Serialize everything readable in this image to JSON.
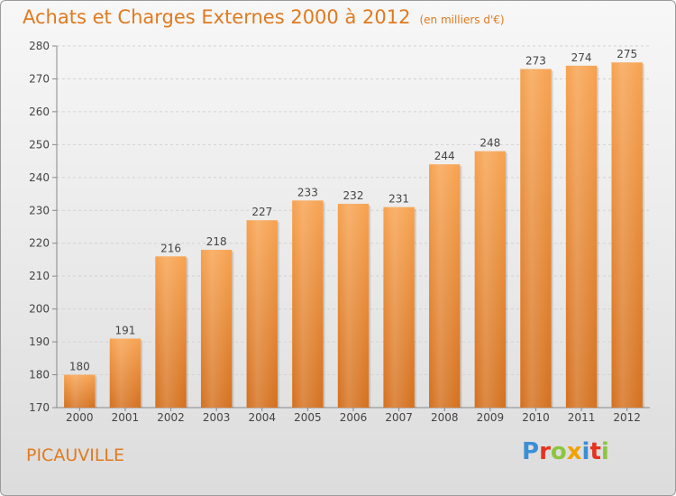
{
  "title": {
    "main": "Achats et Charges Externes 2000 à 2012",
    "unit": "(en milliers d'€)"
  },
  "commune": "PICAUVILLE",
  "logo": {
    "text": "Proxiti",
    "colors": [
      "#3a8fd6",
      "#e6321e",
      "#8cc63f",
      "#f4a000",
      "#3a8fd6",
      "#e6321e",
      "#8cc63f"
    ]
  },
  "colors": {
    "bar_light": "#f7a24f",
    "bar_dark": "#d4701e",
    "title": "#e07a1e"
  },
  "chart_data": {
    "type": "bar",
    "categories": [
      "2000",
      "2001",
      "2002",
      "2003",
      "2004",
      "2005",
      "2006",
      "2007",
      "2008",
      "2009",
      "2010",
      "2011",
      "2012"
    ],
    "values": [
      180,
      191,
      216,
      218,
      227,
      233,
      232,
      231,
      244,
      248,
      273,
      274,
      275
    ],
    "title": "Achats et Charges Externes 2000 à 2012",
    "xlabel": "",
    "ylabel": "",
    "ylim": [
      170,
      280
    ],
    "yticks": [
      170,
      180,
      190,
      200,
      210,
      220,
      230,
      240,
      250,
      260,
      270,
      280
    ],
    "grid": true,
    "data_labels": true
  }
}
